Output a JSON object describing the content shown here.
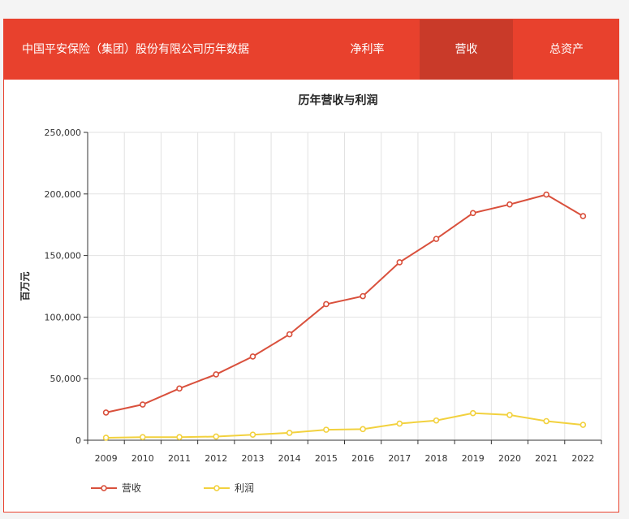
{
  "header": {
    "title": "中国平安保险（集团）股份有限公司历年数据",
    "tabs": [
      {
        "label": "净利率",
        "active": false
      },
      {
        "label": "营收",
        "active": true
      },
      {
        "label": "总资产",
        "active": false
      }
    ]
  },
  "colors": {
    "brand": "#e8412d",
    "tab_active": "#c93a29",
    "revenue": "#d9503c",
    "profit": "#f2d13e"
  },
  "chart_data": {
    "type": "line",
    "title": "历年营收与利润",
    "xlabel": "",
    "ylabel": "百万元",
    "categories": [
      "2009",
      "2010",
      "2011",
      "2012",
      "2013",
      "2014",
      "2015",
      "2016",
      "2017",
      "2018",
      "2019",
      "2020",
      "2021",
      "2022"
    ],
    "ylim": [
      0,
      250000
    ],
    "yticks": [
      0,
      50000,
      100000,
      150000,
      200000,
      250000
    ],
    "ytick_labels": [
      "0",
      "50,000",
      "100,000",
      "150,000",
      "200,000",
      "250,000"
    ],
    "grid": true,
    "legend_position": "bottom-left",
    "series": [
      {
        "name": "营收",
        "values": [
          22500,
          29000,
          42000,
          53500,
          68000,
          86000,
          110500,
          117000,
          144500,
          163500,
          184500,
          191500,
          199500,
          182000
        ]
      },
      {
        "name": "利润",
        "values": [
          2000,
          2500,
          2500,
          3000,
          4500,
          6000,
          8500,
          9000,
          13500,
          16000,
          22000,
          20500,
          15500,
          12500
        ]
      }
    ]
  }
}
